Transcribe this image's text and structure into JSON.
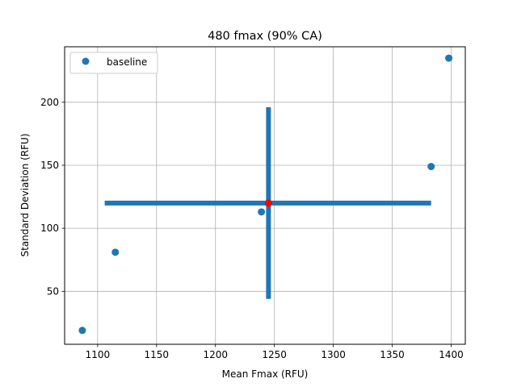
{
  "chart_data": {
    "type": "scatter",
    "title": "480 fmax (90% CA)",
    "xlabel": "Mean Fmax (RFU)",
    "ylabel": "Standard Deviation (RFU)",
    "xlim": [
      1072,
      1412
    ],
    "ylim": [
      8,
      244
    ],
    "x_ticks": [
      1100,
      1150,
      1200,
      1250,
      1300,
      1350,
      1400
    ],
    "y_ticks": [
      50,
      100,
      150,
      200
    ],
    "grid": true,
    "legend": {
      "placement": "top-left",
      "entries": [
        "baseline"
      ]
    },
    "series": [
      {
        "name": "baseline",
        "color": "#1f77b4",
        "points": [
          {
            "x": 1087,
            "y": 19
          },
          {
            "x": 1115,
            "y": 81
          },
          {
            "x": 1239,
            "y": 113
          },
          {
            "x": 1383,
            "y": 149
          },
          {
            "x": 1398,
            "y": 235
          }
        ]
      }
    ],
    "center_point": {
      "x": 1245,
      "y": 120,
      "color": "#ff0000"
    },
    "range_bars": {
      "color": "#1f77b4",
      "horizontal": {
        "x": [
          1106,
          1383
        ],
        "y": 120
      },
      "vertical": {
        "x": 1245,
        "y": [
          44,
          196
        ]
      }
    }
  }
}
